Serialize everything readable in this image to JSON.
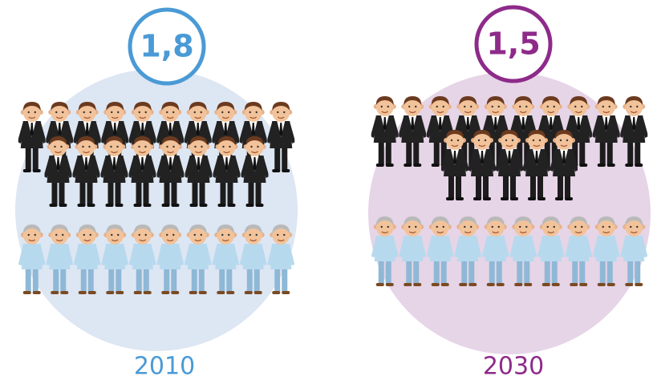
{
  "panels": [
    {
      "ratio": "1,8",
      "year": "2010",
      "workers": 18,
      "retirees": 10,
      "color": "#4a9ad6",
      "background": "#dde6f3"
    },
    {
      "ratio": "1,5",
      "year": "2030",
      "workers": 15,
      "retirees": 10,
      "color": "#8e2a8a",
      "background": "#e6d4e7"
    }
  ]
}
